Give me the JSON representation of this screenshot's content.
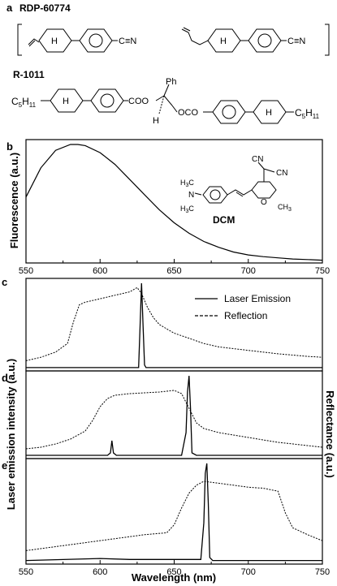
{
  "panels": {
    "a": {
      "letter": "a",
      "compound1": "RDP-60774",
      "compound2": "R-1011",
      "ring_h": "H",
      "nitrile": "C≡N",
      "ester1": "COO",
      "ester2": "OCO",
      "c5h11": "C",
      "c5h11_sub1": "5",
      "c5h11_h": "H",
      "c5h11_sub2": "11",
      "ph": "Ph",
      "stereo_h": "H"
    },
    "b": {
      "letter": "b",
      "ylabel": "Fluorescence (a.u.)",
      "dye": "DCM",
      "cn": "CN",
      "n": "N",
      "o": "O",
      "ch3": "CH",
      "sub3": "3",
      "h3c": "H",
      "c": "C"
    },
    "c": {
      "letter": "c"
    },
    "d": {
      "letter": "d"
    },
    "e": {
      "letter": "e"
    },
    "legend": [
      {
        "label": "Laser Emission",
        "style": "solid"
      },
      {
        "label": "Reflection",
        "style": "dashed"
      }
    ],
    "ylabel_left": "Laser emission intensity (a.u.)",
    "ylabel_right": "Reflectance (a.u.)",
    "xlabel": "Wavelength (nm)"
  },
  "chart_data": [
    {
      "panel": "b",
      "type": "line",
      "xlim": [
        550,
        750
      ],
      "xticks": [
        550,
        600,
        650,
        700,
        750
      ],
      "ylabel": "Fluorescence (a.u.)",
      "series": [
        {
          "x": [
            550,
            560,
            570,
            580,
            585,
            590,
            600,
            610,
            620,
            630,
            640,
            650,
            660,
            670,
            680,
            690,
            700,
            710,
            720,
            730,
            740,
            750
          ],
          "y": [
            0.55,
            0.8,
            0.95,
            1.0,
            1.0,
            0.99,
            0.93,
            0.83,
            0.7,
            0.57,
            0.44,
            0.33,
            0.24,
            0.17,
            0.12,
            0.08,
            0.055,
            0.04,
            0.03,
            0.02,
            0.015,
            0.01
          ]
        }
      ]
    },
    {
      "panel": "c",
      "type": "line",
      "xlim": [
        550,
        750
      ],
      "series": [
        {
          "name": "Laser Emission",
          "style": "solid",
          "x": [
            550,
            620,
            626,
            627,
            628,
            629,
            630,
            631,
            632,
            640,
            750
          ],
          "y": [
            0.02,
            0.02,
            0.02,
            0.5,
            1.0,
            0.5,
            0.05,
            0.02,
            0.02,
            0.02,
            0.02
          ]
        },
        {
          "name": "Reflection",
          "style": "dashed",
          "x": [
            550,
            560,
            570,
            578,
            582,
            586,
            590,
            600,
            610,
            620,
            625,
            628,
            632,
            636,
            640,
            650,
            660,
            670,
            680,
            700,
            720,
            740,
            750
          ],
          "y": [
            0.1,
            0.14,
            0.2,
            0.3,
            0.55,
            0.75,
            0.78,
            0.82,
            0.86,
            0.9,
            0.95,
            0.88,
            0.72,
            0.6,
            0.52,
            0.42,
            0.36,
            0.3,
            0.26,
            0.22,
            0.18,
            0.15,
            0.14
          ]
        }
      ]
    },
    {
      "panel": "d",
      "type": "line",
      "xlim": [
        550,
        750
      ],
      "series": [
        {
          "name": "Laser Emission",
          "style": "solid",
          "x": [
            550,
            605,
            607,
            608,
            609,
            611,
            655,
            658,
            659,
            660,
            661,
            662,
            665,
            750
          ],
          "y": [
            0.02,
            0.02,
            0.05,
            0.2,
            0.05,
            0.02,
            0.02,
            0.3,
            0.8,
            1.0,
            0.6,
            0.05,
            0.02,
            0.02
          ]
        },
        {
          "name": "Reflection",
          "style": "dashed",
          "x": [
            550,
            560,
            570,
            580,
            590,
            595,
            600,
            605,
            610,
            620,
            630,
            640,
            650,
            655,
            660,
            665,
            670,
            680,
            700,
            720,
            740,
            750
          ],
          "y": [
            0.1,
            0.12,
            0.16,
            0.22,
            0.32,
            0.45,
            0.62,
            0.72,
            0.76,
            0.78,
            0.79,
            0.8,
            0.82,
            0.78,
            0.6,
            0.42,
            0.35,
            0.3,
            0.24,
            0.18,
            0.14,
            0.12
          ]
        }
      ]
    },
    {
      "panel": "e",
      "type": "line",
      "xlim": [
        550,
        750
      ],
      "xticks": [
        550,
        600,
        650,
        700,
        750
      ],
      "xlabel": "Wavelength (nm)",
      "series": [
        {
          "name": "Laser Emission",
          "style": "solid",
          "x": [
            550,
            600,
            620,
            640,
            660,
            668,
            670,
            671,
            672,
            673,
            674,
            676,
            690,
            750
          ],
          "y": [
            0.02,
            0.04,
            0.03,
            0.03,
            0.03,
            0.03,
            0.4,
            0.9,
            1.0,
            0.6,
            0.05,
            0.02,
            0.02,
            0.02
          ]
        },
        {
          "name": "Reflection",
          "style": "dashed",
          "x": [
            550,
            570,
            590,
            610,
            630,
            645,
            650,
            655,
            660,
            665,
            670,
            680,
            690,
            700,
            710,
            720,
            725,
            730,
            740,
            750
          ],
          "y": [
            0.12,
            0.16,
            0.2,
            0.24,
            0.28,
            0.3,
            0.38,
            0.55,
            0.7,
            0.78,
            0.82,
            0.8,
            0.78,
            0.76,
            0.75,
            0.72,
            0.5,
            0.35,
            0.28,
            0.22
          ]
        }
      ]
    }
  ]
}
